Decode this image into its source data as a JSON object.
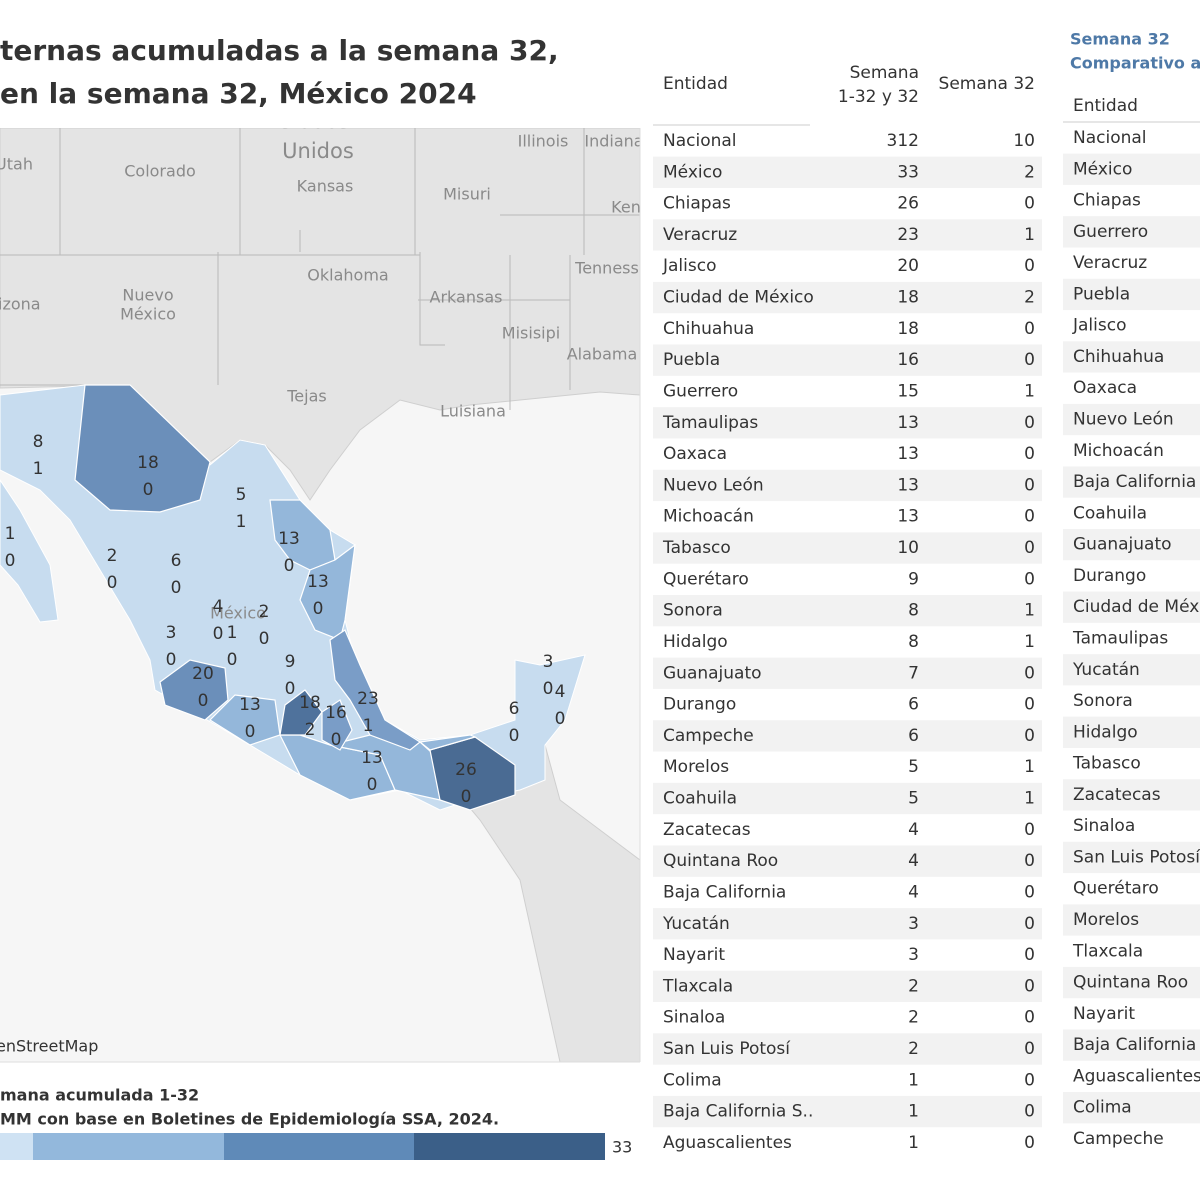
{
  "header": {
    "title_lines": [
      "ternas acumuladas a la semana 32,",
      "en la semana 32, México 2024"
    ]
  },
  "map": {
    "places": [
      "Estados",
      "Unidos",
      "Utah",
      "Colorado",
      "Kansas",
      "Illinois",
      "Indiana",
      "Misuri",
      "Ken",
      "Oklahoma",
      "Tenness",
      "rizona",
      "Nuevo",
      "México",
      "Arkansas",
      "Misisipi",
      "Alabama",
      "Tejas",
      "Luisiana",
      "México"
    ],
    "labels": [
      [
        8,
        1
      ],
      [
        18,
        0
      ],
      [
        5,
        1
      ],
      [
        1,
        0
      ],
      [
        2,
        0
      ],
      [
        6,
        0
      ],
      [
        13,
        0
      ],
      [
        13,
        0
      ],
      [
        4,
        0
      ],
      [
        1,
        0
      ],
      [
        2,
        0
      ],
      [
        3,
        0
      ],
      [
        20,
        0
      ],
      [
        9,
        0
      ],
      [
        13,
        0
      ],
      [
        18,
        2
      ],
      [
        16,
        0
      ],
      [
        23,
        1
      ],
      [
        13,
        0
      ],
      [
        26,
        0
      ],
      [
        6,
        0
      ],
      [
        3,
        0
      ],
      [
        4,
        0
      ]
    ],
    "attribution": "enStreetMap"
  },
  "legend": {
    "title": "mana acumulada 1-32",
    "source": "MM con base en Boletines de Epidemiología SSA, 2024.",
    "max": 33
  },
  "table": {
    "header": {
      "entity": "Entidad",
      "cumulative": [
        "Semana",
        "1-32 y 32"
      ],
      "week": "Semana 32"
    },
    "rows": [
      [
        "Nacional",
        312,
        10
      ],
      [
        "México",
        33,
        2
      ],
      [
        "Chiapas",
        26,
        0
      ],
      [
        "Veracruz",
        23,
        1
      ],
      [
        "Jalisco",
        20,
        0
      ],
      [
        "Ciudad de México",
        18,
        2
      ],
      [
        "Chihuahua",
        18,
        0
      ],
      [
        "Puebla",
        16,
        0
      ],
      [
        "Guerrero",
        15,
        1
      ],
      [
        "Tamaulipas",
        13,
        0
      ],
      [
        "Oaxaca",
        13,
        0
      ],
      [
        "Nuevo León",
        13,
        0
      ],
      [
        "Michoacán",
        13,
        0
      ],
      [
        "Tabasco",
        10,
        0
      ],
      [
        "Querétaro",
        9,
        0
      ],
      [
        "Sonora",
        8,
        1
      ],
      [
        "Hidalgo",
        8,
        1
      ],
      [
        "Guanajuato",
        7,
        0
      ],
      [
        "Durango",
        6,
        0
      ],
      [
        "Campeche",
        6,
        0
      ],
      [
        "Morelos",
        5,
        1
      ],
      [
        "Coahuila",
        5,
        1
      ],
      [
        "Zacatecas",
        4,
        0
      ],
      [
        "Quintana Roo",
        4,
        0
      ],
      [
        "Baja California",
        4,
        0
      ],
      [
        "Yucatán",
        3,
        0
      ],
      [
        "Nayarit",
        3,
        0
      ],
      [
        "Tlaxcala",
        2,
        0
      ],
      [
        "Sinaloa",
        2,
        0
      ],
      [
        "San Luis Potosí",
        2,
        0
      ],
      [
        "Colima",
        1,
        0
      ],
      [
        "Baja California S..",
        1,
        0
      ],
      [
        "Aguascalientes",
        1,
        0
      ]
    ]
  },
  "table2": {
    "title_lines": [
      "Semana 32",
      "Comparativo añ"
    ],
    "entity_header": "Entidad",
    "rows": [
      "Nacional",
      "México",
      "Chiapas",
      "Guerrero",
      "Veracruz",
      "Puebla",
      "Jalisco",
      "Chihuahua",
      "Oaxaca",
      "Nuevo León",
      "Michoacán",
      "Baja California",
      "Coahuila",
      "Guanajuato",
      "Durango",
      "Ciudad de México",
      "Tamaulipas",
      "Yucatán",
      "Sonora",
      "Hidalgo",
      "Tabasco",
      "Zacatecas",
      "Sinaloa",
      "San Luis Potosí",
      "Querétaro",
      "Morelos",
      "Tlaxcala",
      "Quintana Roo",
      "Nayarit",
      "Baja California S..",
      "Aguascalientes",
      "Colima",
      "Campeche"
    ]
  }
}
